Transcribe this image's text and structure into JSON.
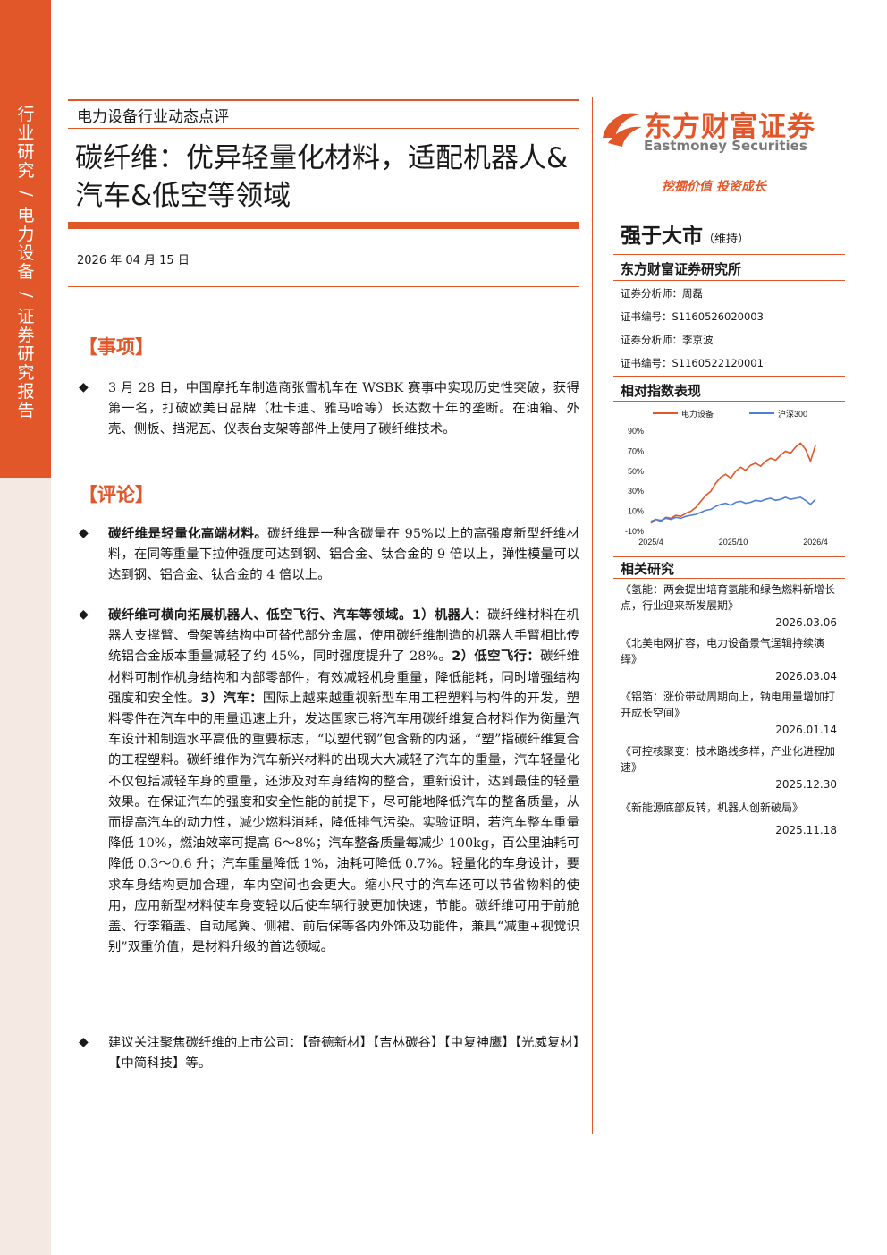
{
  "sidebar": {
    "parts": [
      "行业研究",
      "电力设备",
      "证券研究报告"
    ],
    "separator": "/"
  },
  "header": {
    "doc_type": "电力设备行业动态点评",
    "title": "碳纤维：优异轻量化材料，适配机器人&汽车&低空等领域",
    "date": "2026 年 04 月 15 日"
  },
  "sections": {
    "event_head": "【事项】",
    "comment_head": "【评论】"
  },
  "event": {
    "bullet": "◆",
    "text": "3 月 28 日，中国摩托车制造商张雪机车在 WSBK 赛事中实现历史性突破，获得第一名，打破欧美日品牌（杜卡迪、雅马哈等）长达数十年的垄断。在油箱、外壳、侧板、挡泥瓦、仪表台支架等部件上使用了碳纤维技术。"
  },
  "comments": [
    {
      "bold": "碳纤维是轻量化高端材料。",
      "text": "碳纤维是一种含碳量在 95%以上的高强度新型纤维材料，在同等重量下拉伸强度可达到钢、铝合金、钛合金的 9 倍以上，弹性模量可以达到钢、铝合金、钛合金的 4 倍以上。"
    },
    {
      "bold": "碳纤维可横向拓展机器人、低空飞行、汽车等领域。1）机器人：",
      "text": "碳纤维材料在机器人支撑臂、骨架等结构中可替代部分金属，使用碳纤维制造的机器人手臂相比传统铝合金版本重量减轻了约 45%，同时强度提升了 28%。",
      "bold2": "2）低空飞行：",
      "text2": "碳纤维材料可制作机身结构和内部零部件，有效减轻机身重量，降低能耗，同时增强结构强度和安全性。",
      "bold3": "3）汽车：",
      "text3": "国际上越来越重视新型车用工程塑料与构件的开发，塑料零件在汽车中的用量迅速上升，发达国家已将汽车用碳纤维复合材料作为衡量汽车设计和制造水平高低的重要标志，“以塑代钢”包含新的内涵，“塑”指碳纤维复合的工程塑料。碳纤维作为汽车新兴材料的出现大大减轻了汽车的重量，汽车轻量化不仅包括减轻车身的重量，还涉及对车身结构的整合，重新设计，达到最佳的轻量效果。在保证汽车的强度和安全性能的前提下，尽可能地降低汽车的整备质量，从而提高汽车的动力性，减少燃料消耗，降低排气污染。实验证明，若汽车整车重量降低 10%，燃油效率可提高 6～8%；汽车整备质量每减少 100kg，百公里油耗可降低 0.3～0.6 升；汽车重量降低 1%，油耗可降低 0.7%。轻量化的车身设计，要求车身结构更加合理，车内空间也会更大。缩小尺寸的汽车还可以节省物料的使用，应用新型材料使车身变轻以后使车辆行驶更加快速，节能。碳纤维可用于前舱盖、行李箱盖、自动尾翼、侧裙、前后保等各内外饰及功能件，兼具“减重+视觉识别”双重价值，是材料升级的首选领域。"
    },
    {
      "bold": "",
      "text": "建议关注聚焦碳纤维的上市公司：【奇德新材】【吉林碳谷】【中复神鹰】【光威复材】【中简科技】等。"
    }
  ],
  "right": {
    "logo_cn": "东方财富证券",
    "logo_en": "Eastmoney Securities",
    "slogan": "挖掘价值 投资成长",
    "rating": "强于大市",
    "rating_note": "（维持）",
    "institute": "东方财富证券研究所",
    "analyst1": "证券分析师：周磊",
    "cert1": "证书编号：S1160526020003",
    "analyst2": "证券分析师：李京波",
    "cert2": "证书编号：S1160522120001",
    "chart_head": "相对指数表现",
    "related_head": "相关研究",
    "related": [
      {
        "title": "《氢能：两会提出培育氢能和绿色燃料新增长点，行业迎来新发展期》",
        "date": "2026.03.06"
      },
      {
        "title": "《北美电网扩容，电力设备景气逞辑持续演绎》",
        "date": "2026.03.04"
      },
      {
        "title": "《铝箔：涨价带动周期向上，钠电用量增加打开成长空间》",
        "date": "2026.01.14"
      },
      {
        "title": "《可控核聚变：技术路线多样，产业化进程加速》",
        "date": "2025.12.30"
      },
      {
        "title": "《新能源底部反转，机器人创新破局》",
        "date": "2025.11.18"
      }
    ]
  },
  "colors": {
    "accent": "#e1572a",
    "series2": "#4f7fd0",
    "sidebar_bg": "#f4eae3"
  },
  "chart_data": {
    "type": "line",
    "title": "",
    "x_ticks": [
      "2025/4",
      "2025/10",
      "2026/4"
    ],
    "y_ticks": [
      "90%",
      "70%",
      "50%",
      "30%",
      "10%",
      "-10%"
    ],
    "ylim": [
      -10,
      90
    ],
    "legend_position": "top",
    "series": [
      {
        "name": "电力设备",
        "color": "#e1572a",
        "values": [
          -2,
          2,
          0,
          4,
          3,
          6,
          5,
          8,
          10,
          14,
          20,
          26,
          30,
          38,
          44,
          47,
          43,
          50,
          54,
          51,
          56,
          58,
          55,
          60,
          63,
          61,
          66,
          70,
          68,
          74,
          78,
          72,
          60,
          76
        ]
      },
      {
        "name": "沪深300",
        "color": "#4f7fd0",
        "values": [
          0,
          2,
          1,
          3,
          2,
          4,
          3,
          5,
          6,
          7,
          9,
          11,
          12,
          15,
          17,
          18,
          16,
          19,
          20,
          18,
          19,
          21,
          20,
          22,
          23,
          21,
          22,
          24,
          22,
          23,
          24,
          21,
          17,
          22
        ]
      }
    ]
  }
}
